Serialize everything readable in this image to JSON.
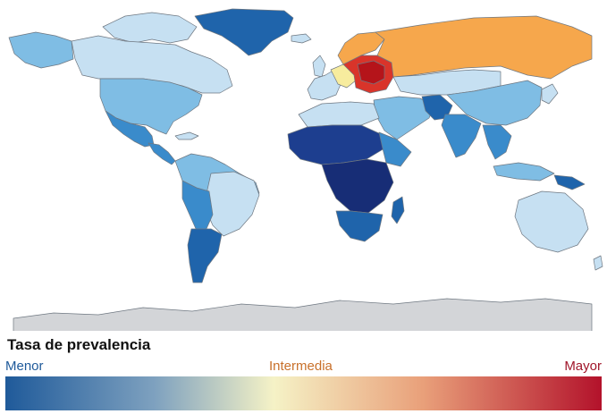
{
  "legend": {
    "title": "Tasa de prevalencia",
    "low_label": "Menor",
    "mid_label": "Intermedia",
    "high_label": "Mayor",
    "colors": {
      "low": "#1f5a9a",
      "mid": "#f5f2c6",
      "high": "#b3122b",
      "low_label": "#1f5a9a",
      "mid_label": "#c8702a",
      "high_label": "#a0162a"
    }
  },
  "map": {
    "projection": "world, Robinson-like",
    "no_data_color": "#d3d5d8",
    "palette": {
      "very_high": "#b5141a",
      "high": "#d9342a",
      "upper_mid": "#f6a74c",
      "mid": "#f7ec9e",
      "light": "#c6e0f2",
      "moderate": "#7fbde4",
      "medium": "#3a8bcb",
      "strong": "#1f64ab",
      "very_strong": "#1d3e8f",
      "extreme": "#172d76"
    }
  }
}
